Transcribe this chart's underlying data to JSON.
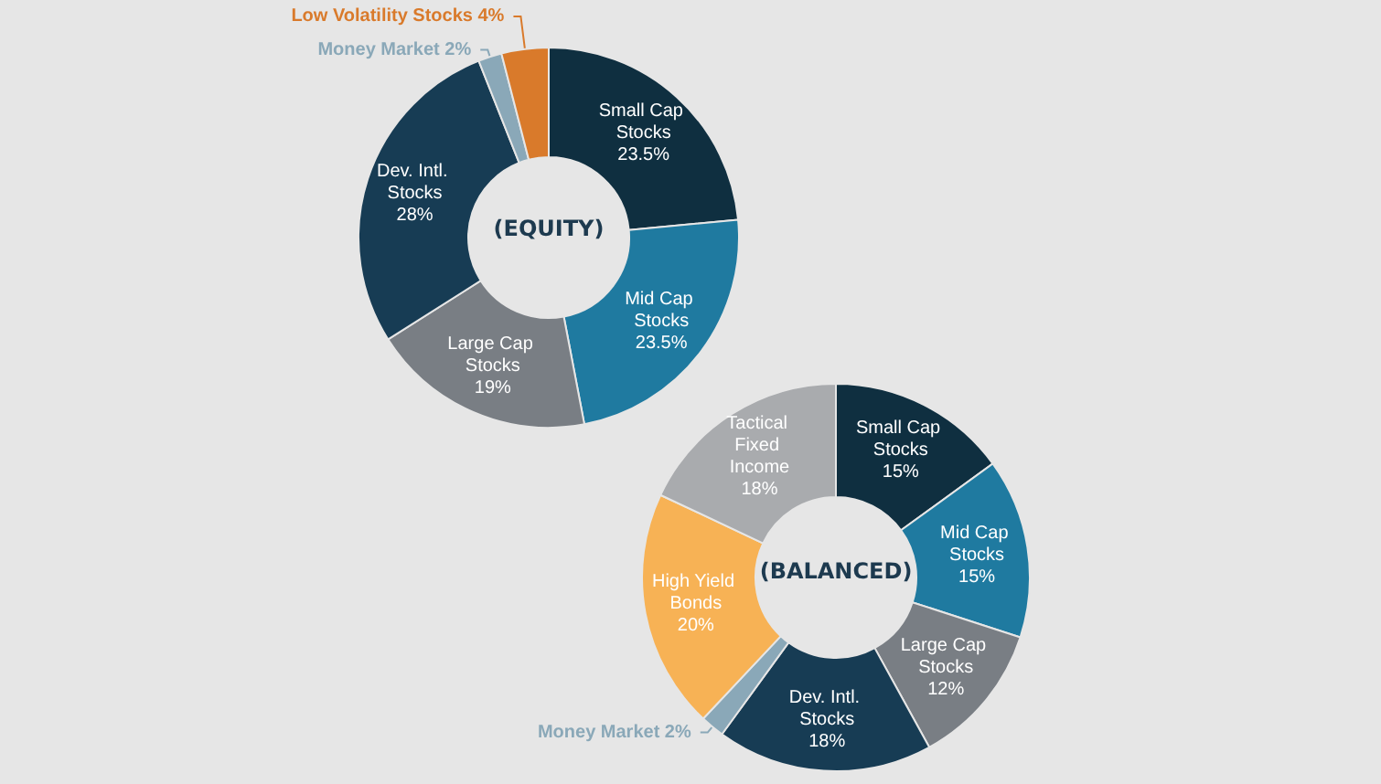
{
  "chart_data": [
    {
      "type": "donut",
      "title": "(EQUITY)",
      "categories": [
        "Small Cap Stocks",
        "Mid Cap Stocks",
        "Large Cap Stocks",
        "Dev. Intl. Stocks",
        "Money Market",
        "Low Volatility Stocks"
      ],
      "values": [
        23.5,
        23.5,
        19,
        28,
        2,
        4
      ],
      "value_labels": [
        "23.5%",
        "23.5%",
        "19%",
        "28%",
        "2%",
        "4%"
      ],
      "colors": [
        "#0f2f40",
        "#1f7aa0",
        "#797e84",
        "#173c54",
        "#8aa8b8",
        "#d97a2b"
      ],
      "data_labels": true
    },
    {
      "type": "donut",
      "title": "(BALANCED)",
      "categories": [
        "Small Cap Stocks",
        "Mid Cap Stocks",
        "Large Cap Stocks",
        "Dev. Intl. Stocks",
        "Money Market",
        "High Yield Bonds",
        "Tactical Fixed Income"
      ],
      "values": [
        15,
        15,
        12,
        18,
        2,
        20,
        18
      ],
      "value_labels": [
        "15%",
        "15%",
        "12%",
        "18%",
        "2%",
        "20%",
        "18%"
      ],
      "colors": [
        "#0f2f40",
        "#1f7aa0",
        "#797e84",
        "#173c54",
        "#8aa8b8",
        "#f7b255",
        "#a9abae"
      ],
      "data_labels": true
    }
  ]
}
